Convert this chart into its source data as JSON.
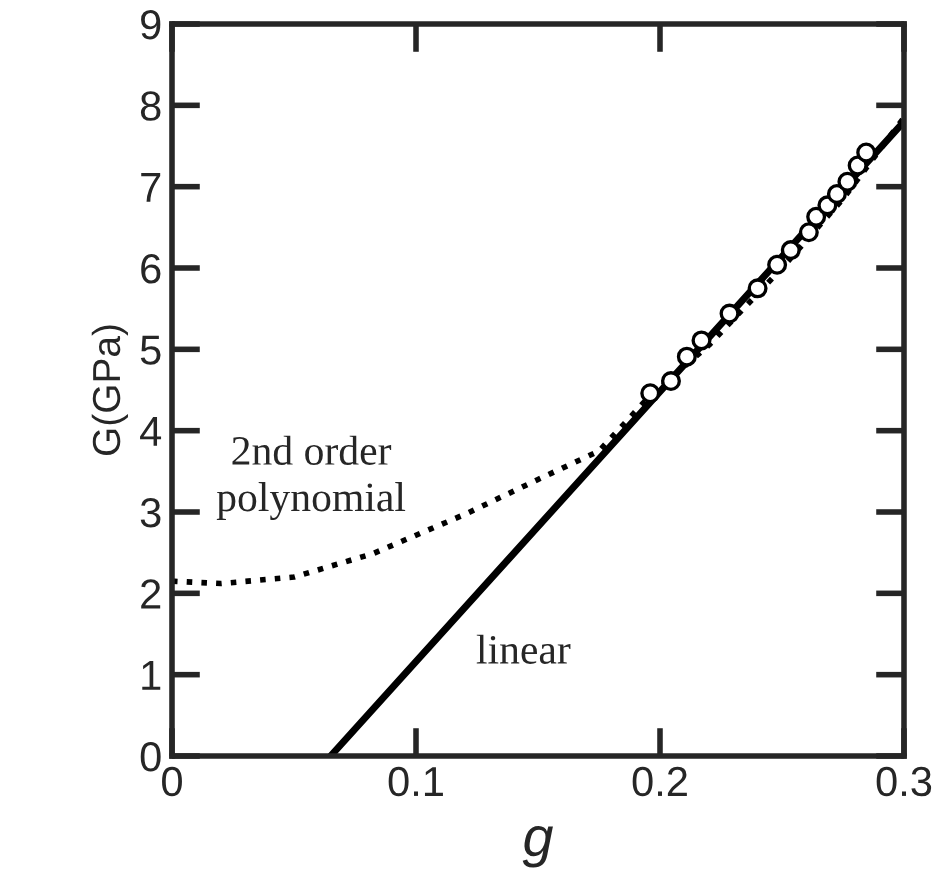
{
  "chart_data": {
    "type": "scatter",
    "xlabel": "g",
    "ylabel": "G(GPa)",
    "xlim": [
      0,
      0.3
    ],
    "ylim": [
      0,
      9
    ],
    "xticks": [
      0,
      0.1,
      0.2,
      0.3
    ],
    "yticks": [
      0,
      1,
      2,
      3,
      4,
      5,
      6,
      7,
      8,
      9
    ],
    "grid": false,
    "series": [
      {
        "type": "line",
        "color": "#000000",
        "line_style": "dotted",
        "marker": "none",
        "x": [
          0,
          0.02,
          0.05,
          0.0825,
          0.1207,
          0.15,
          0.175,
          0.195,
          0.22,
          0.25,
          0.275,
          0.3
        ],
        "values": [
          2.15,
          2.12,
          2.2,
          2.49,
          2.98,
          3.4,
          3.75,
          4.4,
          5.05,
          6.0,
          6.85,
          7.85
        ]
      },
      {
        "type": "line",
        "color": "#000000",
        "line_style": "solid",
        "marker": "none",
        "x": [
          0.065,
          0.3
        ],
        "values": [
          0,
          7.8
        ]
      },
      {
        "color": "#000000",
        "marker": "circle",
        "x": [
          0.196,
          0.2045,
          0.211,
          0.217,
          0.2285,
          0.24,
          0.248,
          0.2536,
          0.261,
          0.264,
          0.2686,
          0.2725,
          0.2768,
          0.281,
          0.2845
        ],
        "values": [
          4.46,
          4.61,
          4.91,
          5.11,
          5.44,
          5.75,
          6.04,
          6.22,
          6.44,
          6.63,
          6.77,
          6.91,
          7.06,
          7.26,
          7.42
        ]
      }
    ],
    "annotations": [
      "2nd order\npolynomial",
      "linear"
    ]
  }
}
